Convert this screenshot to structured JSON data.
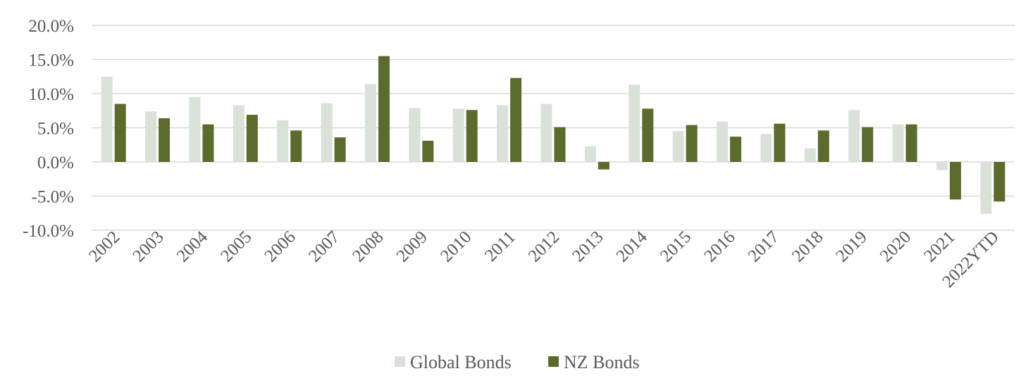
{
  "chart_data": {
    "type": "bar",
    "categories": [
      "2002",
      "2003",
      "2004",
      "2005",
      "2006",
      "2007",
      "2008",
      "2009",
      "2010",
      "2011",
      "2012",
      "2013",
      "2014",
      "2015",
      "2016",
      "2017",
      "2018",
      "2019",
      "2020",
      "2021",
      "2022YTD"
    ],
    "series": [
      {
        "name": "Global Bonds",
        "color": "#d9e1d9",
        "values": [
          12.5,
          7.4,
          9.5,
          8.3,
          6.1,
          8.6,
          11.4,
          7.9,
          7.8,
          8.3,
          8.5,
          2.3,
          11.3,
          4.5,
          5.9,
          4.1,
          2.0,
          7.6,
          5.5,
          -1.2,
          -7.6
        ]
      },
      {
        "name": "NZ Bonds",
        "color": "#5c6b2b",
        "values": [
          8.5,
          6.4,
          5.5,
          6.9,
          4.6,
          3.6,
          15.5,
          3.1,
          7.6,
          12.3,
          5.1,
          -1.1,
          7.8,
          5.4,
          3.7,
          5.6,
          4.6,
          5.1,
          5.5,
          -5.5,
          -5.8
        ]
      }
    ],
    "yticks": [
      "20.0%",
      "15.0%",
      "10.0%",
      "5.0%",
      "0.0%",
      "-5.0%",
      "-10.0%"
    ],
    "ylim": [
      -10,
      20
    ],
    "grid": true,
    "legend_position": "bottom-center"
  }
}
